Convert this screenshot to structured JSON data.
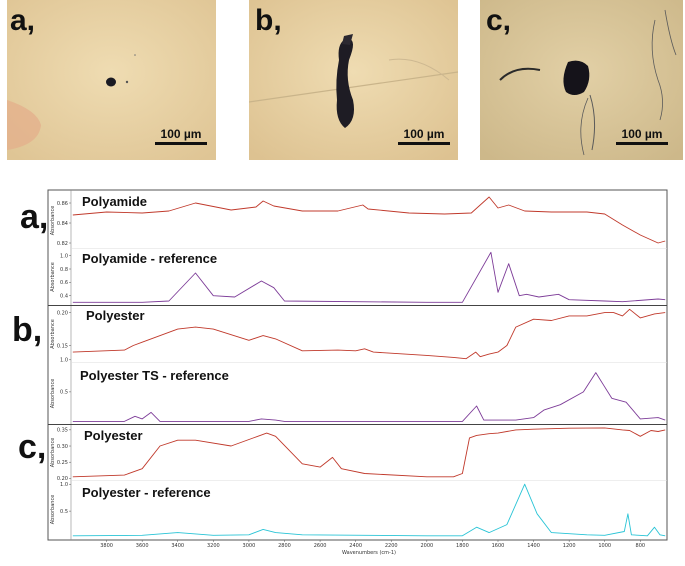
{
  "micrographs": [
    {
      "label": "a,",
      "scale_bar": "100 µm"
    },
    {
      "label": "b,",
      "scale_bar": "100 µm"
    },
    {
      "label": "c,",
      "scale_bar": "100 µm"
    }
  ],
  "colors": {
    "sample_spectrum": "#c0392b",
    "polyamide_reference": "#7d3c98",
    "polyester_ts_reference": "#7d3c98",
    "polyester_reference": "#29c4d6",
    "photo_background": "#e9d4a7"
  },
  "chart_data": {
    "type": "line",
    "xlabel": "Wavenumbers (cm-1)",
    "x_axis": {
      "reversed": true,
      "range": [
        4000,
        650
      ],
      "ticks": [
        "3800",
        "3600",
        "3400",
        "3200",
        "3000",
        "2800",
        "2600",
        "2400",
        "2200",
        "2000",
        "1800",
        "1600",
        "1400",
        "1200",
        "1000",
        "800"
      ]
    },
    "ylabel": "Absorbance",
    "panels": [
      {
        "letter": "a,",
        "spectra": [
          {
            "name": "Polyamide",
            "color": "#c0392b",
            "yticks": [
              "0.86",
              "0.84",
              "0.82"
            ],
            "points": [
              [
                3990,
                0.848
              ],
              [
                3800,
                0.851
              ],
              [
                3600,
                0.85
              ],
              [
                3450,
                0.852
              ],
              [
                3300,
                0.86
              ],
              [
                3100,
                0.853
              ],
              [
                2960,
                0.856
              ],
              [
                2920,
                0.862
              ],
              [
                2860,
                0.857
              ],
              [
                2700,
                0.852
              ],
              [
                2500,
                0.852
              ],
              [
                2360,
                0.858
              ],
              [
                2330,
                0.854
              ],
              [
                2100,
                0.85
              ],
              [
                1900,
                0.849
              ],
              [
                1750,
                0.85
              ],
              [
                1650,
                0.866
              ],
              [
                1600,
                0.855
              ],
              [
                1540,
                0.858
              ],
              [
                1450,
                0.852
              ],
              [
                1300,
                0.851
              ],
              [
                1100,
                0.851
              ],
              [
                1000,
                0.849
              ],
              [
                900,
                0.838
              ],
              [
                800,
                0.828
              ],
              [
                700,
                0.82
              ],
              [
                660,
                0.822
              ]
            ]
          },
          {
            "name": "Polyamide - reference",
            "color": "#7d3c98",
            "yticks": [
              "1.0",
              "0.8",
              "0.6",
              "0.4"
            ],
            "points": [
              [
                3990,
                0.3
              ],
              [
                3600,
                0.3
              ],
              [
                3450,
                0.32
              ],
              [
                3300,
                0.74
              ],
              [
                3200,
                0.4
              ],
              [
                3080,
                0.38
              ],
              [
                2930,
                0.62
              ],
              [
                2860,
                0.52
              ],
              [
                2800,
                0.32
              ],
              [
                2000,
                0.3
              ],
              [
                1800,
                0.3
              ],
              [
                1640,
                1.05
              ],
              [
                1600,
                0.45
              ],
              [
                1540,
                0.88
              ],
              [
                1480,
                0.4
              ],
              [
                1440,
                0.42
              ],
              [
                1370,
                0.38
              ],
              [
                1260,
                0.42
              ],
              [
                1200,
                0.34
              ],
              [
                1000,
                0.32
              ],
              [
                900,
                0.31
              ],
              [
                700,
                0.35
              ],
              [
                660,
                0.34
              ]
            ]
          }
        ]
      },
      {
        "letter": "b,",
        "spectra": [
          {
            "name": "Polyester",
            "color": "#c0392b",
            "yticks": [
              "0.20",
              "0.15"
            ],
            "points": [
              [
                3990,
                0.14
              ],
              [
                3700,
                0.143
              ],
              [
                3650,
                0.15
              ],
              [
                3600,
                0.155
              ],
              [
                3400,
                0.175
              ],
              [
                3300,
                0.178
              ],
              [
                3200,
                0.175
              ],
              [
                3000,
                0.158
              ],
              [
                2920,
                0.165
              ],
              [
                2850,
                0.16
              ],
              [
                2700,
                0.142
              ],
              [
                2500,
                0.143
              ],
              [
                2400,
                0.142
              ],
              [
                2350,
                0.145
              ],
              [
                2300,
                0.14
              ],
              [
                2000,
                0.135
              ],
              [
                1850,
                0.132
              ],
              [
                1780,
                0.13
              ],
              [
                1725,
                0.14
              ],
              [
                1700,
                0.133
              ],
              [
                1650,
                0.137
              ],
              [
                1600,
                0.14
              ],
              [
                1550,
                0.15
              ],
              [
                1500,
                0.178
              ],
              [
                1400,
                0.19
              ],
              [
                1300,
                0.188
              ],
              [
                1200,
                0.195
              ],
              [
                1100,
                0.195
              ],
              [
                1000,
                0.2
              ],
              [
                950,
                0.2
              ],
              [
                900,
                0.195
              ],
              [
                860,
                0.205
              ],
              [
                800,
                0.192
              ],
              [
                720,
                0.198
              ],
              [
                660,
                0.2
              ]
            ]
          },
          {
            "name": "Polyester TS - reference",
            "color": "#7d3c98",
            "yticks": [
              "1.0",
              "0.5"
            ],
            "points": [
              [
                3990,
                0.04
              ],
              [
                3700,
                0.04
              ],
              [
                3640,
                0.12
              ],
              [
                3600,
                0.08
              ],
              [
                3550,
                0.18
              ],
              [
                3500,
                0.04
              ],
              [
                3000,
                0.04
              ],
              [
                2930,
                0.08
              ],
              [
                2850,
                0.06
              ],
              [
                2800,
                0.04
              ],
              [
                1800,
                0.04
              ],
              [
                1720,
                0.28
              ],
              [
                1680,
                0.06
              ],
              [
                1500,
                0.06
              ],
              [
                1400,
                0.1
              ],
              [
                1340,
                0.22
              ],
              [
                1250,
                0.3
              ],
              [
                1120,
                0.5
              ],
              [
                1050,
                0.8
              ],
              [
                1010,
                0.62
              ],
              [
                960,
                0.4
              ],
              [
                880,
                0.34
              ],
              [
                800,
                0.08
              ],
              [
                700,
                0.1
              ],
              [
                660,
                0.06
              ]
            ]
          }
        ]
      },
      {
        "letter": "c,",
        "spectra": [
          {
            "name": "Polyester",
            "color": "#c0392b",
            "yticks": [
              "0.35",
              "0.30",
              "0.25",
              "0.20"
            ],
            "points": [
              [
                3990,
                0.205
              ],
              [
                3700,
                0.21
              ],
              [
                3600,
                0.23
              ],
              [
                3500,
                0.3
              ],
              [
                3400,
                0.318
              ],
              [
                3300,
                0.318
              ],
              [
                3100,
                0.3
              ],
              [
                2950,
                0.33
              ],
              [
                2900,
                0.34
              ],
              [
                2850,
                0.33
              ],
              [
                2700,
                0.245
              ],
              [
                2600,
                0.235
              ],
              [
                2530,
                0.265
              ],
              [
                2480,
                0.23
              ],
              [
                2350,
                0.215
              ],
              [
                2000,
                0.205
              ],
              [
                1850,
                0.205
              ],
              [
                1800,
                0.215
              ],
              [
                1760,
                0.325
              ],
              [
                1720,
                0.333
              ],
              [
                1650,
                0.338
              ],
              [
                1600,
                0.34
              ],
              [
                1500,
                0.35
              ],
              [
                1400,
                0.352
              ],
              [
                1200,
                0.355
              ],
              [
                1000,
                0.356
              ],
              [
                900,
                0.35
              ],
              [
                860,
                0.348
              ],
              [
                800,
                0.33
              ],
              [
                740,
                0.348
              ],
              [
                700,
                0.345
              ],
              [
                660,
                0.35
              ]
            ]
          },
          {
            "name": "Polyester - reference",
            "color": "#29c4d6",
            "yticks": [
              "1.0",
              "0.5"
            ],
            "points": [
              [
                3990,
                0.04
              ],
              [
                3600,
                0.05
              ],
              [
                3400,
                0.1
              ],
              [
                3200,
                0.05
              ],
              [
                3000,
                0.06
              ],
              [
                2920,
                0.16
              ],
              [
                2850,
                0.1
              ],
              [
                2700,
                0.06
              ],
              [
                2000,
                0.04
              ],
              [
                1800,
                0.04
              ],
              [
                1720,
                0.2
              ],
              [
                1650,
                0.1
              ],
              [
                1550,
                0.25
              ],
              [
                1450,
                1.0
              ],
              [
                1380,
                0.45
              ],
              [
                1300,
                0.1
              ],
              [
                1100,
                0.06
              ],
              [
                1000,
                0.05
              ],
              [
                890,
                0.12
              ],
              [
                870,
                0.45
              ],
              [
                850,
                0.06
              ],
              [
                760,
                0.04
              ],
              [
                720,
                0.2
              ],
              [
                690,
                0.06
              ],
              [
                660,
                0.04
              ]
            ]
          }
        ]
      }
    ]
  }
}
